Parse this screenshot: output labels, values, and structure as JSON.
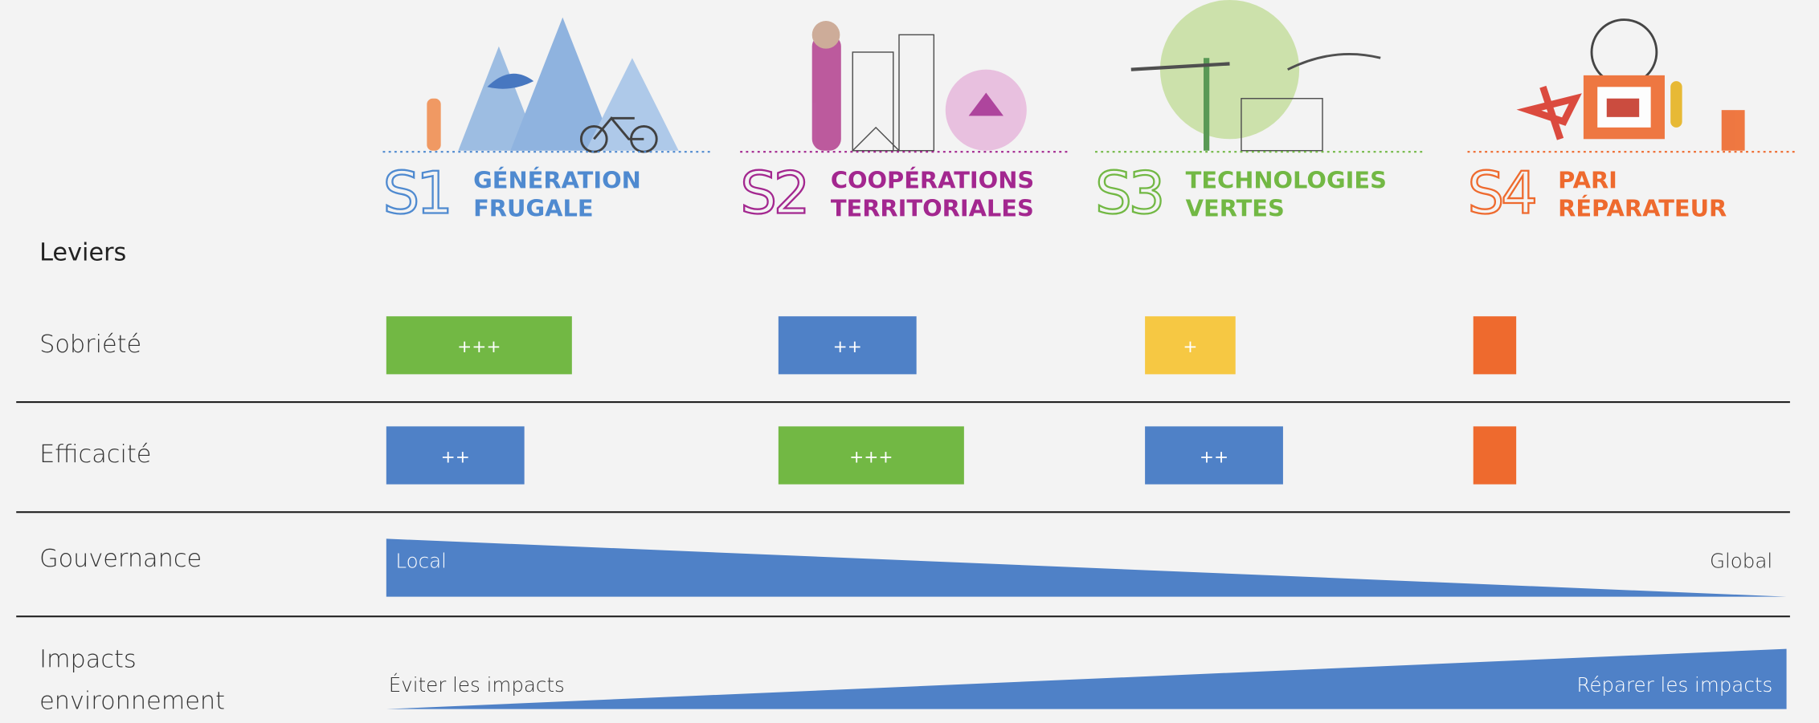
{
  "scenarios": [
    {
      "code": "S1",
      "name_lines": [
        "GÉNÉRATION",
        "FRUGALE"
      ],
      "color": "#4f8ad0"
    },
    {
      "code": "S2",
      "name_lines": [
        "COOPÉRATIONS",
        "TERRITORIALES"
      ],
      "color": "#a3278f"
    },
    {
      "code": "S3",
      "name_lines": [
        "TECHNOLOGIES",
        "VERTES"
      ],
      "color": "#72b844"
    },
    {
      "code": "S4",
      "name_lines": [
        "PARI",
        "RÉPARATEUR"
      ],
      "color": "#ee6a2e"
    }
  ],
  "levers": {
    "title": "Leviers",
    "rows": [
      {
        "label": "Sobriété",
        "cells": [
          {
            "text": "+++",
            "color": "#72b844"
          },
          {
            "text": "++",
            "color": "#4f81c7"
          },
          {
            "text": "+",
            "color": "#f6c843"
          },
          {
            "color": "#ee6a2e"
          }
        ]
      },
      {
        "label": "Efficacité",
        "cells": [
          {
            "text": "++",
            "color": "#4f81c7"
          },
          {
            "text": "+++",
            "color": "#72b844"
          },
          {
            "text": "++",
            "color": "#4f81c7"
          },
          {
            "color": "#ee6a2e"
          }
        ]
      }
    ],
    "gradients": [
      {
        "label_lines": [
          "Gouvernance"
        ],
        "start": "Local",
        "end": "Global",
        "direction": "decreasing",
        "color": "#4f81c7"
      },
      {
        "label_lines": [
          "Impacts",
          "environnement"
        ],
        "start": "Éviter les impacts",
        "end": "Réparer les impacts",
        "direction": "increasing",
        "color": "#4f81c7"
      }
    ]
  }
}
